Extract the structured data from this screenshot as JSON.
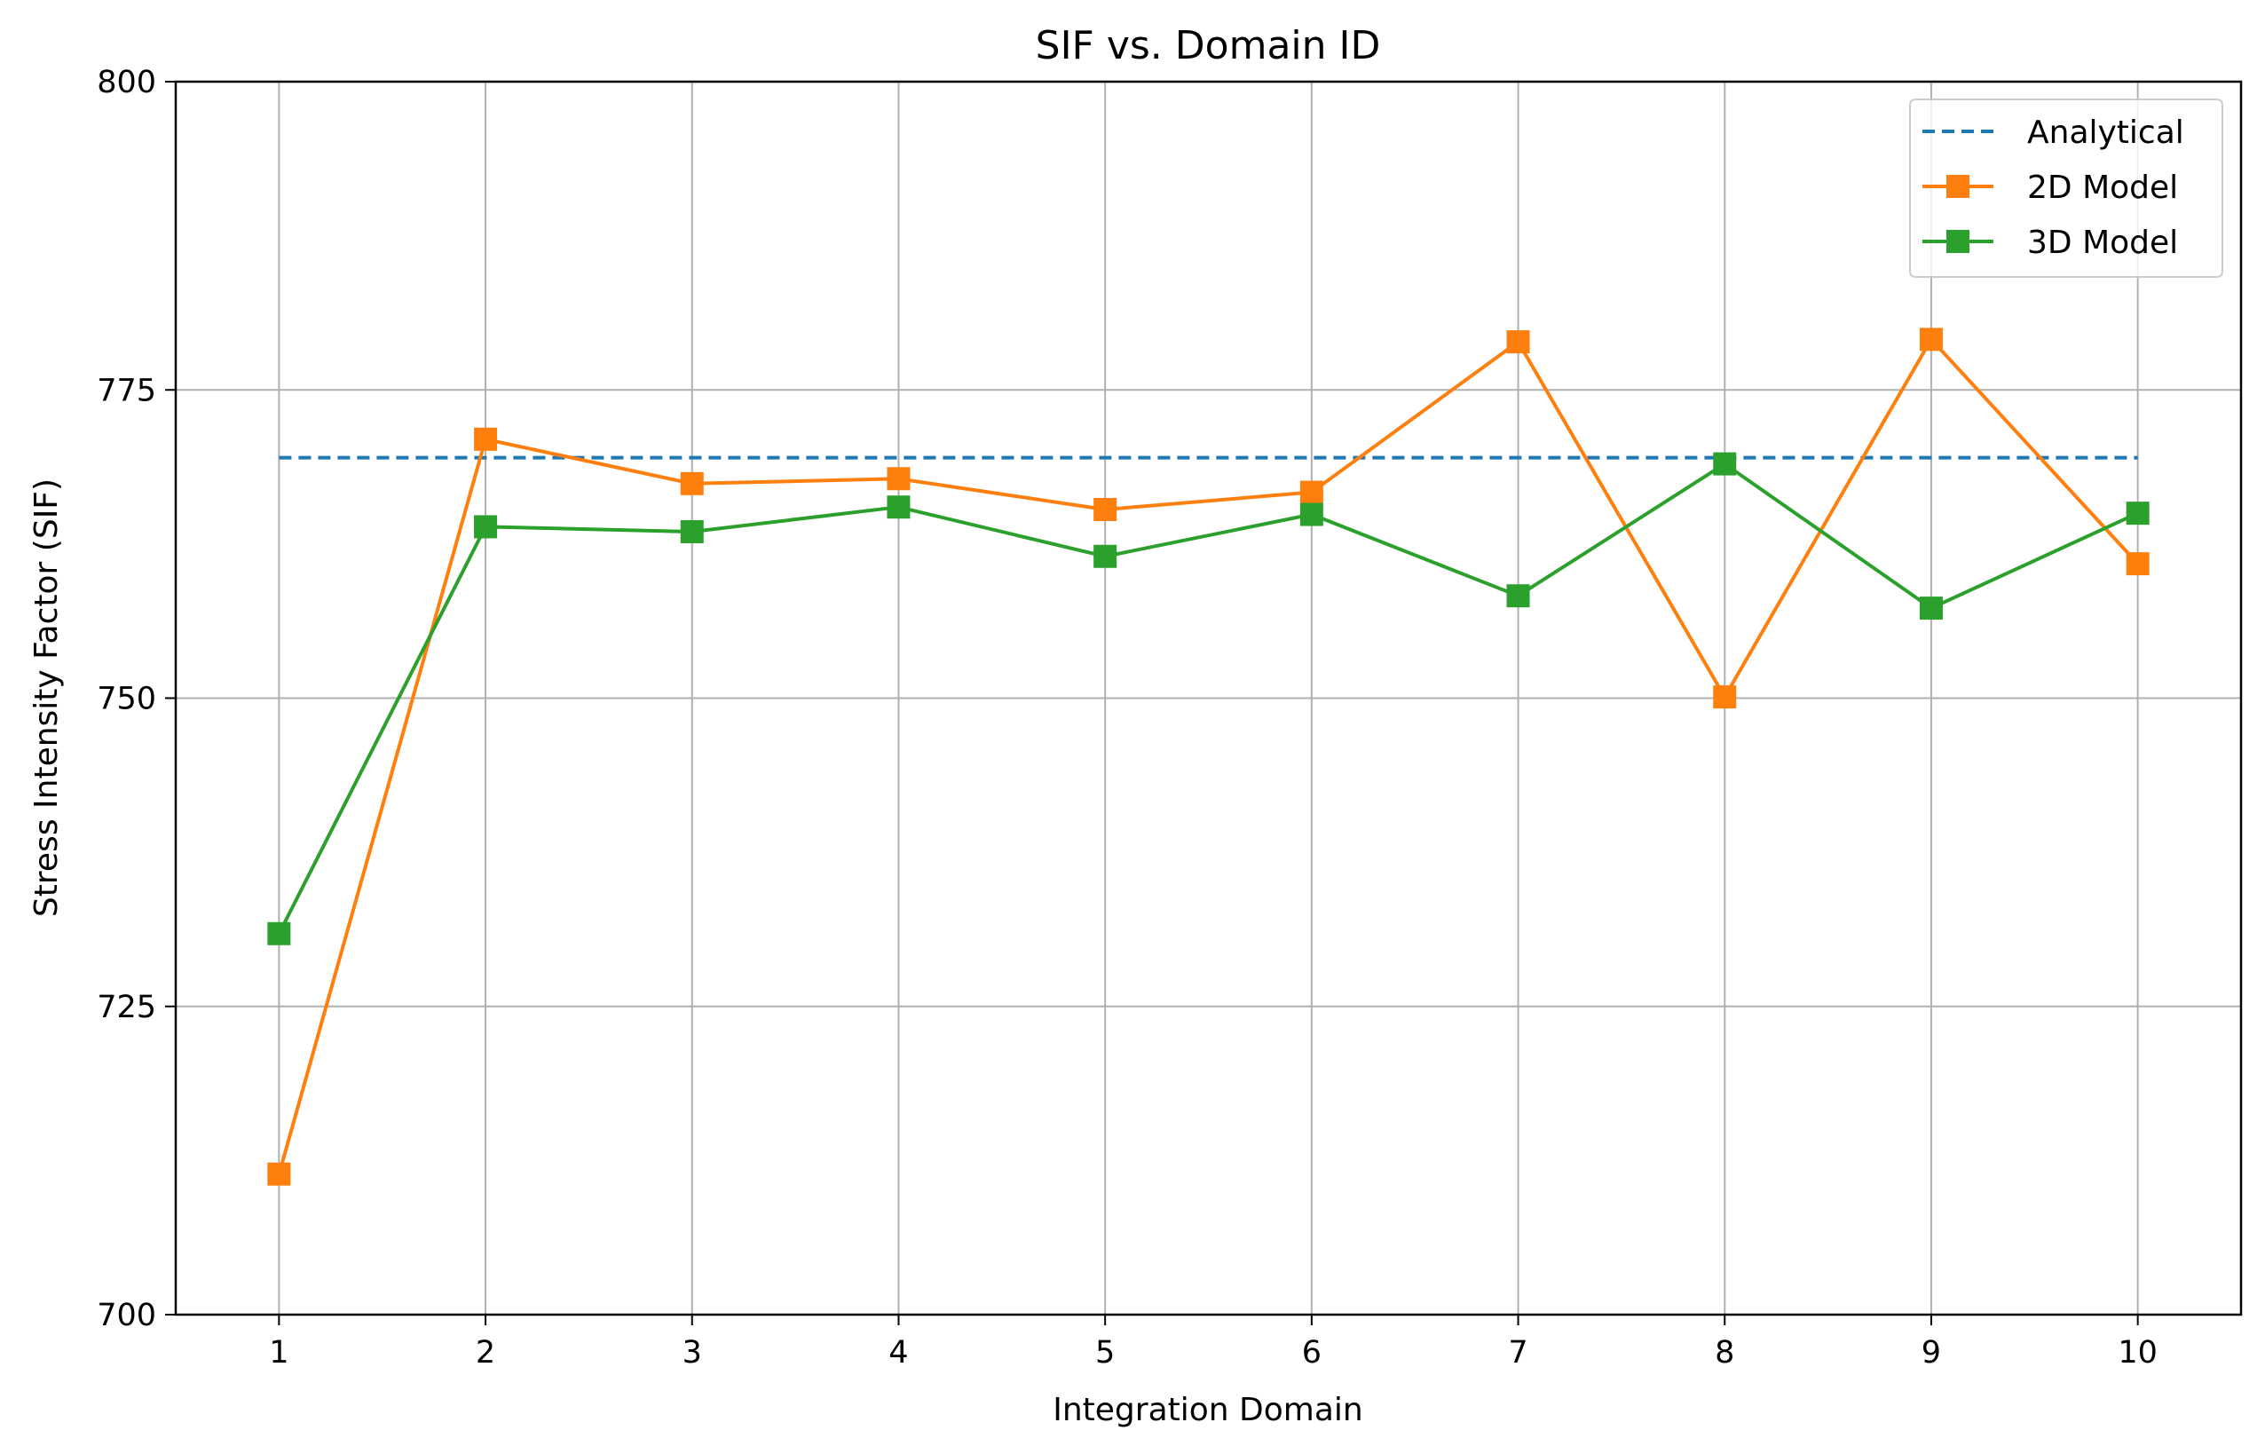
{
  "chart_data": {
    "type": "line",
    "title": "SIF vs. Domain ID",
    "xlabel": "Integration Domain",
    "ylabel": "Stress Intensity Factor (SIF)",
    "x": [
      1,
      2,
      3,
      4,
      5,
      6,
      7,
      8,
      9,
      10
    ],
    "xticks": [
      "1",
      "2",
      "3",
      "4",
      "5",
      "6",
      "7",
      "8",
      "9",
      "10"
    ],
    "xlim": [
      0.5,
      10.5
    ],
    "ylim": [
      700,
      800
    ],
    "yticks": [
      700,
      725,
      750,
      775,
      800
    ],
    "yticks_labels": [
      "700",
      "725",
      "750",
      "775",
      "800"
    ],
    "grid": true,
    "legend_position": "top-right",
    "series": [
      {
        "name": "Analytical",
        "style": "dashed",
        "marker": "none",
        "color": "#1f77b4",
        "values": [
          769.5,
          769.5,
          769.5,
          769.5,
          769.5,
          769.5,
          769.5,
          769.5,
          769.5,
          769.5
        ]
      },
      {
        "name": "2D Model",
        "style": "solid",
        "marker": "square",
        "color": "#ff7f0e",
        "values": [
          711.4,
          771.0,
          767.4,
          767.8,
          765.3,
          766.7,
          778.9,
          750.1,
          779.1,
          760.9
        ]
      },
      {
        "name": "3D Model",
        "style": "solid",
        "marker": "square",
        "color": "#2ca02c",
        "values": [
          730.9,
          763.9,
          763.5,
          765.5,
          761.5,
          764.9,
          758.3,
          769.0,
          757.3,
          765.0
        ]
      }
    ]
  }
}
